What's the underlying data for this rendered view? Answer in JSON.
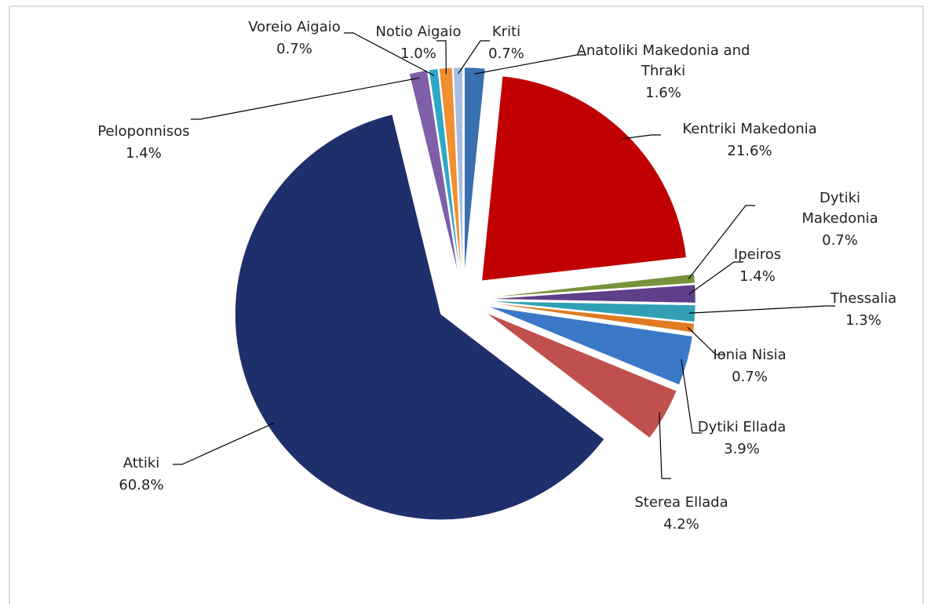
{
  "chart_data": {
    "type": "pie",
    "categories": [
      "Anatoliki Makedonia and Thraki",
      "Kentriki Makedonia",
      "Dytiki Makedonia",
      "Ipeiros",
      "Thessalia",
      "Ionia Nisia",
      "Dytiki Ellada",
      "Sterea Ellada",
      "Attiki",
      "Peloponnisos",
      "Voreio Aigaio",
      "Notio Aigaio",
      "Kriti"
    ],
    "values": [
      1.6,
      21.6,
      0.7,
      1.4,
      1.3,
      0.7,
      3.9,
      4.2,
      60.8,
      1.4,
      0.7,
      1.0,
      0.7
    ],
    "value_labels": [
      "1.6%",
      "21.6%",
      "0.7%",
      "1.4%",
      "1.3%",
      "0.7%",
      "3.9%",
      "4.2%",
      "60.8%",
      "1.4%",
      "0.7%",
      "1.0%",
      "0.7%"
    ],
    "colors": [
      "#3a6fb0",
      "#c00000",
      "#77933c",
      "#5f3f8a",
      "#31a0b5",
      "#e07b1f",
      "#3c78c8",
      "#c0504d",
      "#1f2f6b",
      "#7f5fa8",
      "#2fa8c8",
      "#f09030",
      "#a8bce0"
    ]
  }
}
